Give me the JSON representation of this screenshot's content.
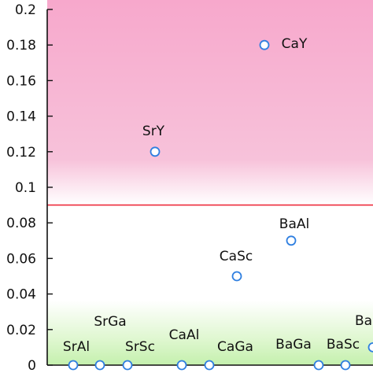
{
  "chart_data": {
    "type": "scatter",
    "title": "",
    "xlabel": "",
    "ylabel": "",
    "ylim": [
      0,
      0.2
    ],
    "grid": false,
    "y_ticks": [
      "0",
      "0.02",
      "0.04",
      "0.06",
      "0.08",
      "0.1",
      "0.12",
      "0.14",
      "0.16",
      "0.18",
      "0.2"
    ],
    "threshold": {
      "y": 0.09,
      "color": "#ee2a3c"
    },
    "colors": {
      "marker_edge": "#2f7fe0",
      "marker_fill": "#ffffff",
      "upper_band": "#f7b6d3",
      "lower_band": "#c9f2b5"
    },
    "points": [
      {
        "label": "SrAl",
        "y": 0.0
      },
      {
        "label": "SrGa",
        "y": 0.0
      },
      {
        "label": "SrSc",
        "y": 0.0
      },
      {
        "label": "SrY",
        "y": 0.12
      },
      {
        "label": "CaAl",
        "y": 0.0
      },
      {
        "label": "CaGa",
        "y": 0.0
      },
      {
        "label": "CaSc",
        "y": 0.05
      },
      {
        "label": "CaY",
        "y": 0.18
      },
      {
        "label": "BaAl",
        "y": 0.07
      },
      {
        "label": "BaGa",
        "y": 0.0
      },
      {
        "label": "BaSc",
        "y": 0.0
      },
      {
        "label": "Ba",
        "y": 0.01
      }
    ]
  }
}
